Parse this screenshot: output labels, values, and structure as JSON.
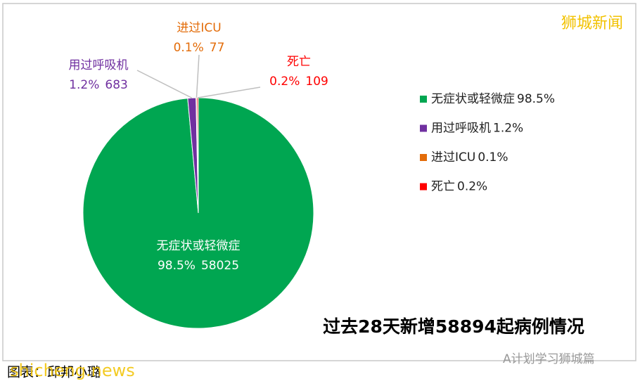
{
  "chart_data": {
    "type": "pie",
    "title": "过去28天新增58894起病例情况",
    "categories": [
      "无症状或轻微症",
      "用过呼吸机",
      "进过ICU",
      "死亡"
    ],
    "values": [
      58025,
      683,
      77,
      109
    ],
    "percent_labels": [
      "98.5%",
      "1.2%",
      "0.1%",
      "0.2%"
    ],
    "colors": [
      "#00a651",
      "#7030a0",
      "#e36c09",
      "#ff0000"
    ],
    "legend": "right"
  },
  "header": {
    "brand": "狮城新闻"
  },
  "footer": {
    "source": "图表：邱邦小璐",
    "watermark_site": "shicheng.news",
    "watermark_account": "A计划学习狮城篇"
  }
}
